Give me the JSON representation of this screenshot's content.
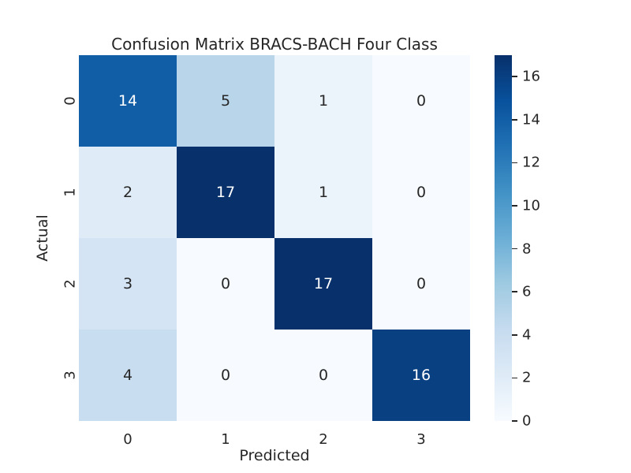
{
  "figure": {
    "background": "#ffffff",
    "text_color": "#262626"
  },
  "chart_data": {
    "type": "heatmap",
    "title": "Confusion Matrix BRACS-BACH Four Class",
    "xlabel": "Predicted",
    "ylabel": "Actual",
    "x_tick_labels": [
      "0",
      "1",
      "2",
      "3"
    ],
    "y_tick_labels": [
      "0",
      "1",
      "2",
      "3"
    ],
    "matrix": [
      [
        14,
        5,
        1,
        0
      ],
      [
        2,
        17,
        1,
        0
      ],
      [
        3,
        0,
        17,
        0
      ],
      [
        4,
        0,
        0,
        16
      ]
    ],
    "vmin": 0,
    "vmax": 17,
    "colormap": {
      "name": "Blues",
      "anchors": [
        "#f7fbff",
        "#deebf7",
        "#c6dbef",
        "#9ecae1",
        "#6baed6",
        "#4292c6",
        "#2171b5",
        "#08519c",
        "#08306b"
      ]
    },
    "annotation_dark_color": "#262626",
    "annotation_light_color": "#ffffff",
    "colorbar": {
      "position": "right",
      "tick_values": [
        0,
        2,
        4,
        6,
        8,
        10,
        12,
        14,
        16
      ]
    },
    "grid": false,
    "legend_position": "none"
  }
}
